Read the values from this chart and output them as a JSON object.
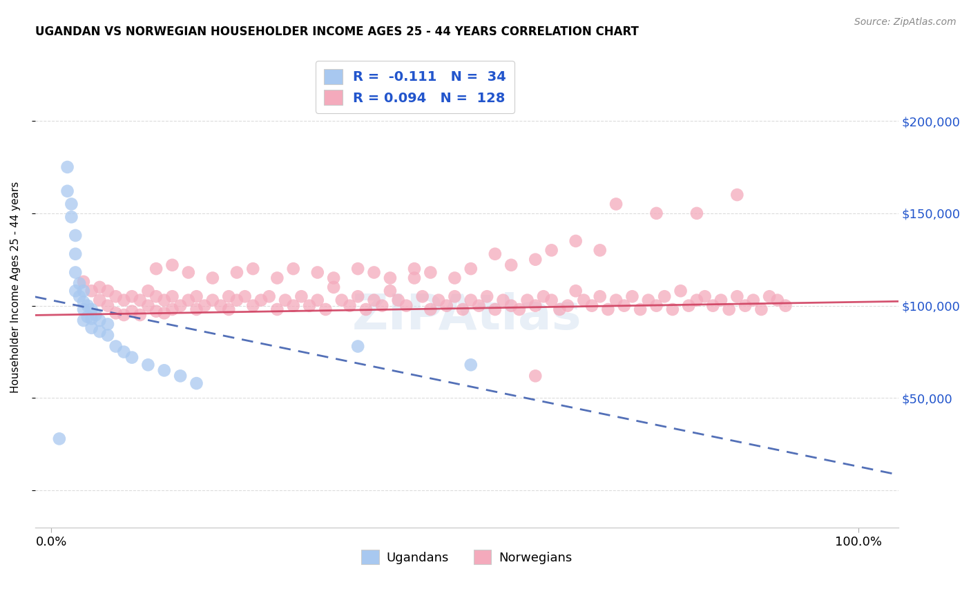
{
  "title": "UGANDAN VS NORWEGIAN HOUSEHOLDER INCOME AGES 25 - 44 YEARS CORRELATION CHART",
  "source": "Source: ZipAtlas.com",
  "ylabel": "Householder Income Ages 25 - 44 years",
  "ugandan_R": -0.111,
  "ugandan_N": 34,
  "norwegian_R": 0.094,
  "norwegian_N": 128,
  "ugandan_color": "#A8C8F0",
  "norwegian_color": "#F4AABC",
  "ugandan_line_color": "#4060B0",
  "norwegian_line_color": "#D04060",
  "right_ytick_labels": [
    "$50,000",
    "$100,000",
    "$150,000",
    "$200,000"
  ],
  "right_ytick_vals": [
    50000,
    100000,
    150000,
    200000
  ],
  "ylim": [
    -20000,
    240000
  ],
  "xlim": [
    -0.02,
    1.05
  ],
  "background_color": "#FFFFFF",
  "grid_color": "#CCCCCC",
  "watermark": "ZIPAtlas",
  "ugandan_x": [
    0.01,
    0.02,
    0.02,
    0.025,
    0.025,
    0.03,
    0.03,
    0.03,
    0.03,
    0.035,
    0.035,
    0.04,
    0.04,
    0.04,
    0.04,
    0.045,
    0.045,
    0.05,
    0.05,
    0.05,
    0.055,
    0.06,
    0.06,
    0.07,
    0.07,
    0.08,
    0.09,
    0.1,
    0.12,
    0.14,
    0.16,
    0.18,
    0.38,
    0.52
  ],
  "ugandan_y": [
    28000,
    175000,
    162000,
    155000,
    148000,
    138000,
    128000,
    118000,
    108000,
    112000,
    105000,
    108000,
    102000,
    98000,
    92000,
    100000,
    94000,
    98000,
    93000,
    88000,
    95000,
    92000,
    86000,
    90000,
    84000,
    78000,
    75000,
    72000,
    68000,
    65000,
    62000,
    58000,
    78000,
    68000
  ],
  "norwegian_x": [
    0.04,
    0.05,
    0.06,
    0.06,
    0.07,
    0.07,
    0.08,
    0.08,
    0.09,
    0.09,
    0.1,
    0.1,
    0.11,
    0.11,
    0.12,
    0.12,
    0.13,
    0.13,
    0.14,
    0.14,
    0.15,
    0.15,
    0.16,
    0.17,
    0.18,
    0.18,
    0.19,
    0.2,
    0.21,
    0.22,
    0.22,
    0.23,
    0.24,
    0.25,
    0.26,
    0.27,
    0.28,
    0.29,
    0.3,
    0.31,
    0.32,
    0.33,
    0.34,
    0.35,
    0.36,
    0.37,
    0.38,
    0.39,
    0.4,
    0.41,
    0.42,
    0.43,
    0.44,
    0.45,
    0.46,
    0.47,
    0.48,
    0.49,
    0.5,
    0.51,
    0.52,
    0.53,
    0.54,
    0.55,
    0.56,
    0.57,
    0.58,
    0.59,
    0.6,
    0.61,
    0.62,
    0.63,
    0.64,
    0.65,
    0.66,
    0.67,
    0.68,
    0.69,
    0.7,
    0.71,
    0.72,
    0.73,
    0.74,
    0.75,
    0.76,
    0.77,
    0.78,
    0.79,
    0.8,
    0.81,
    0.82,
    0.83,
    0.84,
    0.85,
    0.86,
    0.87,
    0.88,
    0.89,
    0.9,
    0.91,
    0.13,
    0.15,
    0.17,
    0.2,
    0.23,
    0.25,
    0.28,
    0.3,
    0.33,
    0.35,
    0.38,
    0.4,
    0.42,
    0.45,
    0.47,
    0.5,
    0.52,
    0.55,
    0.57,
    0.6,
    0.62,
    0.65,
    0.68,
    0.7,
    0.75,
    0.8,
    0.85,
    0.6
  ],
  "norwegian_y": [
    113000,
    108000,
    110000,
    103000,
    108000,
    100000,
    105000,
    96000,
    103000,
    95000,
    105000,
    97000,
    103000,
    95000,
    108000,
    100000,
    105000,
    97000,
    103000,
    96000,
    105000,
    98000,
    100000,
    103000,
    98000,
    105000,
    100000,
    103000,
    100000,
    105000,
    98000,
    103000,
    105000,
    100000,
    103000,
    105000,
    98000,
    103000,
    100000,
    105000,
    100000,
    103000,
    98000,
    110000,
    103000,
    100000,
    105000,
    98000,
    103000,
    100000,
    108000,
    103000,
    100000,
    115000,
    105000,
    98000,
    103000,
    100000,
    105000,
    98000,
    103000,
    100000,
    105000,
    98000,
    103000,
    100000,
    98000,
    103000,
    100000,
    105000,
    103000,
    98000,
    100000,
    108000,
    103000,
    100000,
    105000,
    98000,
    103000,
    100000,
    105000,
    98000,
    103000,
    100000,
    105000,
    98000,
    108000,
    100000,
    103000,
    105000,
    100000,
    103000,
    98000,
    105000,
    100000,
    103000,
    98000,
    105000,
    103000,
    100000,
    120000,
    122000,
    118000,
    115000,
    118000,
    120000,
    115000,
    120000,
    118000,
    115000,
    120000,
    118000,
    115000,
    120000,
    118000,
    115000,
    120000,
    128000,
    122000,
    125000,
    130000,
    135000,
    130000,
    155000,
    150000,
    150000,
    160000,
    62000
  ]
}
